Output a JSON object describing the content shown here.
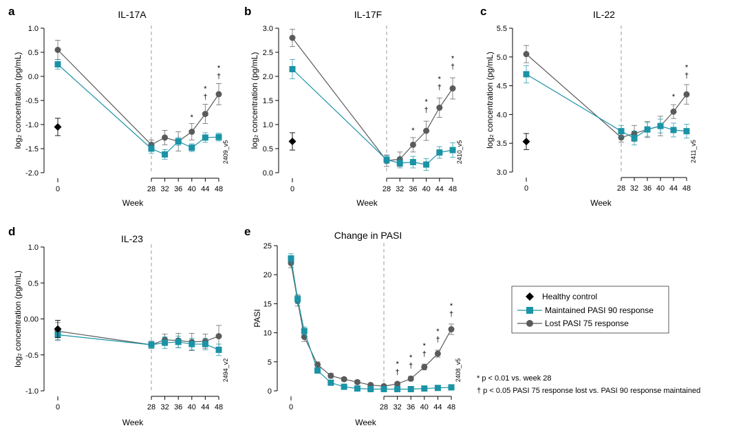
{
  "colors": {
    "teal": "#1a93a6",
    "gray": "#5a5a5a",
    "healthy": "#000000",
    "dashed": "#999999"
  },
  "legend": {
    "healthy": "Healthy control",
    "maintained": "Maintained PASI 90 response",
    "lost": "Lost PASI 75 response"
  },
  "footnotes": {
    "star": "*  p < 0.01 vs. week 28",
    "dagger": "†  p < 0.05 PASI 75 response lost vs. PASI 90 response maintained"
  },
  "chart_data": [
    {
      "id": "a",
      "letter": "a",
      "title": "IL-17A",
      "type": "line",
      "xlabel": "Week",
      "ylabel": "log₂ concentration (pg/mL)",
      "ylim": [
        -2.0,
        1.0
      ],
      "yticks": [
        1.0,
        0.5,
        0.0,
        -0.5,
        -1.0,
        -1.5,
        -2.0
      ],
      "ytick_labels": [
        "1.0",
        "0.5",
        "0.0",
        "-0.5",
        "-1.0",
        "-1.5",
        "-2.0"
      ],
      "xticks": [
        0,
        28,
        32,
        36,
        40,
        44,
        48
      ],
      "dashed_x": 28,
      "code": "2409_v5",
      "healthy": {
        "x": 0,
        "y": -1.05,
        "err": 0.18
      },
      "series": [
        {
          "name": "Maintained PASI 90 response",
          "key": "maintained",
          "x": [
            0,
            28,
            32,
            36,
            40,
            44,
            48
          ],
          "values": [
            0.25,
            -1.5,
            -1.62,
            -1.35,
            -1.48,
            -1.27,
            -1.26
          ],
          "err": [
            0.1,
            0.1,
            0.1,
            0.08,
            0.08,
            0.1,
            0.08
          ]
        },
        {
          "name": "Lost PASI 75 response",
          "key": "lost",
          "x": [
            0,
            28,
            32,
            36,
            40,
            44,
            48
          ],
          "values": [
            0.55,
            -1.42,
            -1.27,
            -1.35,
            -1.15,
            -0.78,
            -0.37
          ],
          "err": [
            0.2,
            0.1,
            0.15,
            0.2,
            0.17,
            0.2,
            0.22
          ]
        }
      ],
      "annotations": [
        {
          "x": 40,
          "y": -0.9,
          "marks": [
            "*"
          ]
        },
        {
          "x": 44,
          "y": -0.48,
          "marks": [
            "*",
            "†"
          ]
        },
        {
          "x": 48,
          "y": -0.05,
          "marks": [
            "*",
            "†"
          ]
        }
      ]
    },
    {
      "id": "b",
      "letter": "b",
      "title": "IL-17F",
      "type": "line",
      "xlabel": "Week",
      "ylabel": "log₂ concentration (pg/mL)",
      "ylim": [
        0.0,
        3.0
      ],
      "yticks": [
        3.0,
        2.5,
        2.0,
        1.5,
        1.0,
        0.5,
        0.0
      ],
      "ytick_labels": [
        "3.0",
        "2.5",
        "2.0",
        "1.5",
        "1.0",
        "0.5",
        "0.0"
      ],
      "xticks": [
        0,
        28,
        32,
        36,
        40,
        44,
        48
      ],
      "dashed_x": 28,
      "code": "2410_v5",
      "healthy": {
        "x": 0,
        "y": 0.65,
        "err": 0.18
      },
      "series": [
        {
          "name": "Maintained PASI 90 response",
          "key": "maintained",
          "x": [
            0,
            28,
            32,
            36,
            40,
            44,
            48
          ],
          "values": [
            2.15,
            0.27,
            0.2,
            0.22,
            0.17,
            0.42,
            0.47
          ],
          "err": [
            0.2,
            0.08,
            0.1,
            0.12,
            0.12,
            0.12,
            0.15
          ]
        },
        {
          "name": "Lost PASI 75 response",
          "key": "lost",
          "x": [
            0,
            28,
            32,
            36,
            40,
            44,
            48
          ],
          "values": [
            2.8,
            0.25,
            0.28,
            0.58,
            0.87,
            1.35,
            1.75
          ],
          "err": [
            0.18,
            0.12,
            0.15,
            0.15,
            0.2,
            0.2,
            0.22
          ]
        }
      ],
      "annotations": [
        {
          "x": 36,
          "y": 0.83,
          "marks": [
            "*"
          ]
        },
        {
          "x": 40,
          "y": 1.25,
          "marks": [
            "*",
            "†"
          ]
        },
        {
          "x": 44,
          "y": 1.72,
          "marks": [
            "*",
            "†"
          ]
        },
        {
          "x": 48,
          "y": 2.15,
          "marks": [
            "*",
            "†"
          ]
        }
      ]
    },
    {
      "id": "c",
      "letter": "c",
      "title": "IL-22",
      "type": "line",
      "xlabel": "Week",
      "ylabel": "log₂ concentration (pg/mL)",
      "ylim": [
        3.0,
        5.5
      ],
      "yticks": [
        5.5,
        5.0,
        4.5,
        4.0,
        3.5,
        3.0
      ],
      "ytick_labels": [
        "5.5",
        "5.0",
        "4.5",
        "4.0",
        "3.5",
        "3.0"
      ],
      "xticks": [
        0,
        28,
        32,
        36,
        40,
        44,
        48
      ],
      "dashed_x": 28,
      "code": "2411_v5",
      "healthy": {
        "x": 0,
        "y": 3.53,
        "err": 0.14
      },
      "series": [
        {
          "name": "Maintained PASI 90 response",
          "key": "maintained",
          "x": [
            0,
            28,
            32,
            36,
            40,
            44,
            48
          ],
          "values": [
            4.7,
            3.71,
            3.59,
            3.74,
            3.8,
            3.73,
            3.71
          ],
          "err": [
            0.15,
            0.1,
            0.12,
            0.12,
            0.12,
            0.12,
            0.12
          ]
        },
        {
          "name": "Lost PASI 75 response",
          "key": "lost",
          "x": [
            0,
            28,
            32,
            36,
            40,
            44,
            48
          ],
          "values": [
            5.05,
            3.6,
            3.67,
            3.74,
            3.8,
            4.05,
            4.35
          ],
          "err": [
            0.15,
            0.08,
            0.14,
            0.14,
            0.17,
            0.12,
            0.17
          ]
        }
      ],
      "annotations": [
        {
          "x": 44,
          "y": 4.27,
          "marks": [
            "*"
          ]
        },
        {
          "x": 48,
          "y": 4.63,
          "marks": [
            "*",
            "†"
          ]
        }
      ]
    },
    {
      "id": "d",
      "letter": "d",
      "title": "IL-23",
      "type": "line",
      "xlabel": "Week",
      "ylabel": "log₂ concentration (pg/mL)",
      "ylim": [
        -1.0,
        1.0
      ],
      "yticks": [
        1.0,
        0.5,
        0.0,
        -0.5,
        -1.0
      ],
      "ytick_labels": [
        "1.0",
        "0.5",
        "0.00",
        "-0.5",
        "-1.0"
      ],
      "xticks": [
        0,
        28,
        32,
        36,
        40,
        44,
        48
      ],
      "dashed_x": 28,
      "code": "2494_v2",
      "healthy": {
        "x": 0,
        "y": -0.14,
        "err": 0.12
      },
      "series": [
        {
          "name": "Maintained PASI 90 response",
          "key": "maintained",
          "x": [
            0,
            28,
            32,
            36,
            40,
            44,
            48
          ],
          "values": [
            -0.22,
            -0.36,
            -0.33,
            -0.32,
            -0.35,
            -0.35,
            -0.43
          ],
          "err": [
            0.08,
            0.05,
            0.08,
            0.08,
            0.08,
            0.08,
            0.08
          ]
        },
        {
          "name": "Lost PASI 75 response",
          "key": "lost",
          "x": [
            0,
            28,
            32,
            36,
            40,
            44,
            48
          ],
          "values": [
            -0.17,
            -0.36,
            -0.29,
            -0.3,
            -0.32,
            -0.31,
            -0.24
          ],
          "err": [
            0.12,
            0.05,
            0.08,
            0.1,
            0.12,
            0.1,
            0.15
          ]
        }
      ],
      "annotations": []
    },
    {
      "id": "e",
      "letter": "e",
      "title": "Change in PASI",
      "type": "line",
      "xlabel": "Week",
      "ylabel": "PASI",
      "ylim": [
        0,
        25
      ],
      "yticks": [
        25,
        20,
        15,
        10,
        5,
        0
      ],
      "ytick_labels": [
        "25",
        "20",
        "15",
        "10",
        "5",
        "0"
      ],
      "xticks": [
        0,
        28,
        32,
        36,
        40,
        44,
        48
      ],
      "dashed_x": 28,
      "code": "2408_v5",
      "healthy": null,
      "series": [
        {
          "name": "Maintained PASI 90 response",
          "key": "maintained",
          "x": [
            0,
            2,
            4,
            8,
            12,
            16,
            20,
            24,
            28,
            32,
            36,
            40,
            44,
            48
          ],
          "values": [
            22.8,
            15.8,
            10.3,
            3.5,
            1.4,
            0.7,
            0.4,
            0.3,
            0.3,
            0.3,
            0.3,
            0.4,
            0.5,
            0.6
          ],
          "err": [
            0.8,
            0.8,
            0.7,
            0.4,
            0.2,
            0.1,
            0.1,
            0.1,
            0.1,
            0.1,
            0.1,
            0.1,
            0.1,
            0.1
          ]
        },
        {
          "name": "Lost PASI 75 response",
          "key": "lost",
          "x": [
            0,
            2,
            4,
            8,
            12,
            16,
            20,
            24,
            28,
            32,
            36,
            40,
            44,
            48
          ],
          "values": [
            22,
            15.5,
            9.3,
            4.5,
            2.6,
            2.0,
            1.5,
            1.0,
            0.8,
            1.2,
            2.1,
            4.1,
            6.4,
            10.6
          ],
          "err": [
            0.8,
            0.9,
            0.8,
            0.5,
            0.4,
            0.3,
            0.3,
            0.2,
            0.2,
            0.3,
            0.4,
            0.5,
            0.6,
            0.9
          ]
        }
      ],
      "annotations": [
        {
          "x": 32,
          "y": 2.8,
          "marks": [
            "*",
            "†"
          ]
        },
        {
          "x": 36,
          "y": 3.9,
          "marks": [
            "*",
            "†"
          ]
        },
        {
          "x": 40,
          "y": 5.9,
          "marks": [
            "*",
            "†"
          ]
        },
        {
          "x": 44,
          "y": 8.4,
          "marks": [
            "*",
            "†"
          ]
        },
        {
          "x": 48,
          "y": 12.8,
          "marks": [
            "*",
            "†"
          ]
        }
      ]
    }
  ]
}
